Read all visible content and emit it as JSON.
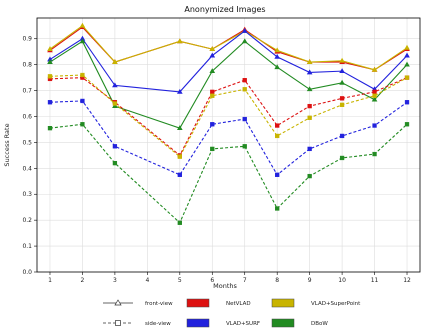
{
  "chart_data": {
    "type": "line",
    "title": "Anonymized Images",
    "xlabel": "Months",
    "ylabel": "Success Rate",
    "xlim": [
      0.6,
      12.4
    ],
    "ylim": [
      0.0,
      0.98
    ],
    "x_ticks": [
      1,
      2,
      3,
      4,
      5,
      6,
      7,
      8,
      9,
      10,
      11,
      12
    ],
    "y_ticks": [
      0.0,
      0.1,
      0.2,
      0.3,
      0.4,
      0.5,
      0.6,
      0.7,
      0.8,
      0.9
    ],
    "x": [
      1,
      2,
      3,
      5,
      6,
      7,
      8,
      9,
      10,
      11,
      12
    ],
    "grid": true,
    "legend_position": "bottom",
    "series": [
      {
        "method": "NetVLAD",
        "view": "front-view",
        "color": "#dd1111",
        "values": [
          0.855,
          0.945,
          0.81,
          0.89,
          0.86,
          0.935,
          0.85,
          0.81,
          0.81,
          0.78,
          0.86
        ]
      },
      {
        "method": "VLAD+SuperPoint",
        "view": "front-view",
        "color": "#c8b400",
        "values": [
          0.86,
          0.95,
          0.81,
          0.89,
          0.86,
          0.93,
          0.855,
          0.81,
          0.815,
          0.78,
          0.865
        ]
      },
      {
        "method": "VLAD+SURF",
        "view": "front-view",
        "color": "#2222dd",
        "values": [
          0.82,
          0.9,
          0.72,
          0.695,
          0.835,
          0.93,
          0.83,
          0.77,
          0.775,
          0.705,
          0.835
        ]
      },
      {
        "method": "DBoW",
        "view": "front-view",
        "color": "#228b22",
        "values": [
          0.81,
          0.89,
          0.64,
          0.555,
          0.775,
          0.89,
          0.79,
          0.705,
          0.73,
          0.665,
          0.8
        ]
      },
      {
        "method": "NetVLAD",
        "view": "side-view",
        "color": "#dd1111",
        "values": [
          0.745,
          0.75,
          0.655,
          0.45,
          0.695,
          0.74,
          0.565,
          0.64,
          0.67,
          0.695,
          0.75
        ]
      },
      {
        "method": "VLAD+SuperPoint",
        "view": "side-view",
        "color": "#c8b400",
        "values": [
          0.755,
          0.76,
          0.65,
          0.445,
          0.68,
          0.705,
          0.525,
          0.595,
          0.645,
          0.68,
          0.75
        ]
      },
      {
        "method": "VLAD+SURF",
        "view": "side-view",
        "color": "#2222dd",
        "values": [
          0.655,
          0.66,
          0.485,
          0.375,
          0.57,
          0.59,
          0.375,
          0.475,
          0.525,
          0.565,
          0.655
        ]
      },
      {
        "method": "DBoW",
        "view": "side-view",
        "color": "#228b22",
        "values": [
          0.555,
          0.57,
          0.42,
          0.19,
          0.475,
          0.485,
          0.245,
          0.37,
          0.44,
          0.455,
          0.57
        ]
      }
    ],
    "legend": {
      "styles": [
        {
          "label": "front-view",
          "dash": "",
          "marker": "triangle"
        },
        {
          "label": "side-view",
          "dash": "3,2",
          "marker": "square"
        }
      ],
      "methods": [
        {
          "label": "NetVLAD",
          "color": "#dd1111"
        },
        {
          "label": "VLAD+SuperPoint",
          "color": "#c8b400"
        },
        {
          "label": "VLAD+SURF",
          "color": "#2222dd"
        },
        {
          "label": "DBoW",
          "color": "#228b22"
        }
      ]
    }
  }
}
